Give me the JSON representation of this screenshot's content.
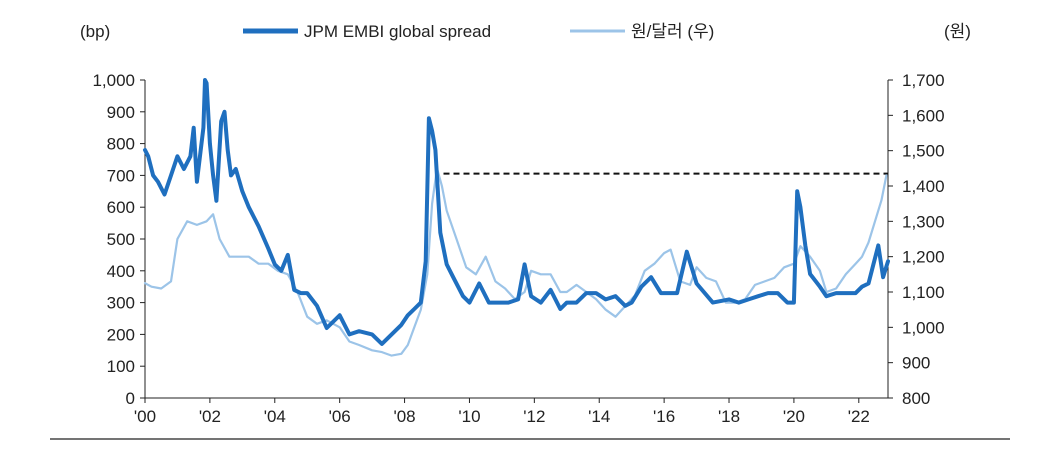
{
  "chart_data": {
    "type": "line",
    "title": "",
    "left_axis": {
      "unit_label": "(bp)",
      "ylim": [
        0,
        1000
      ],
      "ticks": [
        "0",
        "100",
        "200",
        "300",
        "400",
        "500",
        "600",
        "700",
        "800",
        "900",
        "1,000"
      ]
    },
    "right_axis": {
      "unit_label": "(원)",
      "ylim": [
        800,
        1700
      ],
      "ticks": [
        "800",
        "900",
        "1,000",
        "1,100",
        "1,200",
        "1,300",
        "1,400",
        "1,500",
        "1,600",
        "1,700"
      ]
    },
    "x_axis": {
      "range": [
        2000.0,
        2022.9
      ],
      "ticks": [
        {
          "label": "'00",
          "x": 2000
        },
        {
          "label": "'02",
          "x": 2002
        },
        {
          "label": "'04",
          "x": 2004
        },
        {
          "label": "'06",
          "x": 2006
        },
        {
          "label": "'08",
          "x": 2008
        },
        {
          "label": "'10",
          "x": 2010
        },
        {
          "label": "'12",
          "x": 2012
        },
        {
          "label": "'14",
          "x": 2014
        },
        {
          "label": "'16",
          "x": 2016
        },
        {
          "label": "'18",
          "x": 2018
        },
        {
          "label": "'20",
          "x": 2020
        },
        {
          "label": "'22",
          "x": 2022
        }
      ]
    },
    "legend_placement": "top-center",
    "grid": false,
    "series": [
      {
        "name": "JPM EMBI global spread",
        "axis": "left",
        "color": "#1f6fbf",
        "x": [
          2000.0,
          2000.1,
          2000.25,
          2000.4,
          2000.6,
          2000.8,
          2001.0,
          2001.2,
          2001.4,
          2001.5,
          2001.6,
          2001.8,
          2001.85,
          2001.9,
          2002.0,
          2002.1,
          2002.2,
          2002.35,
          2002.45,
          2002.55,
          2002.65,
          2002.8,
          2003.0,
          2003.2,
          2003.5,
          2003.8,
          2004.0,
          2004.2,
          2004.4,
          2004.6,
          2004.8,
          2005.0,
          2005.3,
          2005.6,
          2006.0,
          2006.3,
          2006.6,
          2007.0,
          2007.3,
          2007.6,
          2007.9,
          2008.1,
          2008.3,
          2008.5,
          2008.65,
          2008.75,
          2008.85,
          2008.95,
          2009.1,
          2009.3,
          2009.5,
          2009.8,
          2010.0,
          2010.3,
          2010.6,
          2010.9,
          2011.2,
          2011.5,
          2011.7,
          2011.9,
          2012.2,
          2012.5,
          2012.8,
          2013.0,
          2013.3,
          2013.6,
          2013.9,
          2014.2,
          2014.5,
          2014.8,
          2015.0,
          2015.3,
          2015.6,
          2015.9,
          2016.1,
          2016.4,
          2016.7,
          2017.0,
          2017.5,
          2018.0,
          2018.3,
          2018.6,
          2018.9,
          2019.2,
          2019.5,
          2019.8,
          2020.0,
          2020.1,
          2020.2,
          2020.35,
          2020.5,
          2020.8,
          2021.0,
          2021.3,
          2021.6,
          2021.9,
          2022.1,
          2022.3,
          2022.45,
          2022.6,
          2022.75,
          2022.9
        ],
        "values": [
          780,
          760,
          700,
          680,
          640,
          700,
          760,
          720,
          760,
          850,
          680,
          850,
          1000,
          990,
          800,
          700,
          620,
          870,
          900,
          780,
          700,
          720,
          650,
          600,
          540,
          470,
          420,
          400,
          450,
          340,
          330,
          330,
          290,
          220,
          260,
          200,
          210,
          200,
          170,
          200,
          230,
          260,
          280,
          300,
          430,
          880,
          840,
          780,
          520,
          420,
          380,
          320,
          300,
          360,
          300,
          300,
          300,
          310,
          420,
          320,
          300,
          340,
          280,
          300,
          300,
          330,
          330,
          310,
          320,
          290,
          300,
          350,
          380,
          330,
          330,
          330,
          460,
          360,
          300,
          310,
          300,
          310,
          320,
          330,
          330,
          300,
          300,
          650,
          600,
          480,
          390,
          350,
          320,
          330,
          330,
          330,
          350,
          360,
          420,
          480,
          380,
          430
        ]
      },
      {
        "name": "원/달러 (우)",
        "axis": "right",
        "color": "#9cc4e8",
        "x": [
          2000.0,
          2000.2,
          2000.5,
          2000.8,
          2001.0,
          2001.3,
          2001.6,
          2001.9,
          2002.1,
          2002.3,
          2002.6,
          2002.9,
          2003.2,
          2003.5,
          2003.8,
          2004.1,
          2004.4,
          2004.7,
          2005.0,
          2005.3,
          2005.6,
          2006.0,
          2006.3,
          2006.6,
          2007.0,
          2007.3,
          2007.6,
          2007.9,
          2008.1,
          2008.3,
          2008.5,
          2008.7,
          2008.85,
          2009.0,
          2009.15,
          2009.3,
          2009.6,
          2009.9,
          2010.2,
          2010.5,
          2010.8,
          2011.1,
          2011.4,
          2011.7,
          2011.9,
          2012.2,
          2012.5,
          2012.8,
          2013.0,
          2013.3,
          2013.6,
          2013.9,
          2014.2,
          2014.5,
          2014.8,
          2015.1,
          2015.4,
          2015.7,
          2016.0,
          2016.2,
          2016.5,
          2016.8,
          2017.0,
          2017.3,
          2017.6,
          2017.9,
          2018.2,
          2018.5,
          2018.8,
          2019.1,
          2019.4,
          2019.7,
          2020.0,
          2020.2,
          2020.5,
          2020.8,
          2021.0,
          2021.3,
          2021.6,
          2021.9,
          2022.1,
          2022.3,
          2022.5,
          2022.7,
          2022.85
        ],
        "values": [
          1125,
          1115,
          1110,
          1130,
          1250,
          1300,
          1290,
          1300,
          1320,
          1250,
          1200,
          1200,
          1200,
          1180,
          1180,
          1160,
          1150,
          1100,
          1030,
          1010,
          1020,
          1000,
          960,
          950,
          935,
          930,
          920,
          925,
          950,
          1000,
          1050,
          1150,
          1350,
          1450,
          1400,
          1330,
          1250,
          1170,
          1150,
          1200,
          1130,
          1110,
          1080,
          1100,
          1160,
          1150,
          1150,
          1100,
          1100,
          1120,
          1100,
          1080,
          1050,
          1030,
          1060,
          1090,
          1160,
          1180,
          1210,
          1220,
          1130,
          1120,
          1170,
          1140,
          1130,
          1070,
          1070,
          1080,
          1120,
          1130,
          1140,
          1170,
          1180,
          1230,
          1200,
          1160,
          1100,
          1110,
          1150,
          1180,
          1200,
          1240,
          1300,
          1360,
          1430
        ]
      }
    ],
    "reference_line": {
      "axis": "right",
      "value": 1435,
      "x_from": 2009.2,
      "x_to": 2022.9,
      "style": "dashed"
    }
  }
}
